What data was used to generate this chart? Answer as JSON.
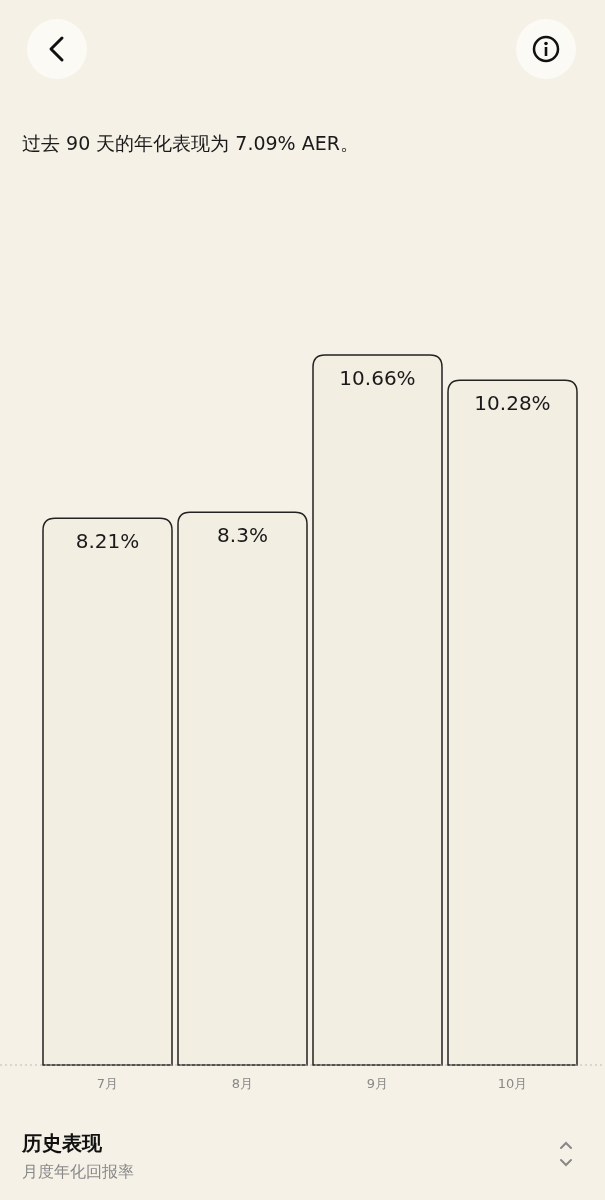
{
  "chart_data": {
    "type": "bar",
    "title": "过去 90 天的年化表现为 7.09% AER。",
    "categories": [
      "7月",
      "8月",
      "9月",
      "10月"
    ],
    "values": [
      8.21,
      8.3,
      10.66,
      10.28
    ],
    "value_labels": [
      "8.21%",
      "8.3%",
      "10.66%",
      "10.28%"
    ],
    "color": "#222222",
    "annotations": [
      "历史表现",
      "月度年化回报率"
    ]
  }
}
